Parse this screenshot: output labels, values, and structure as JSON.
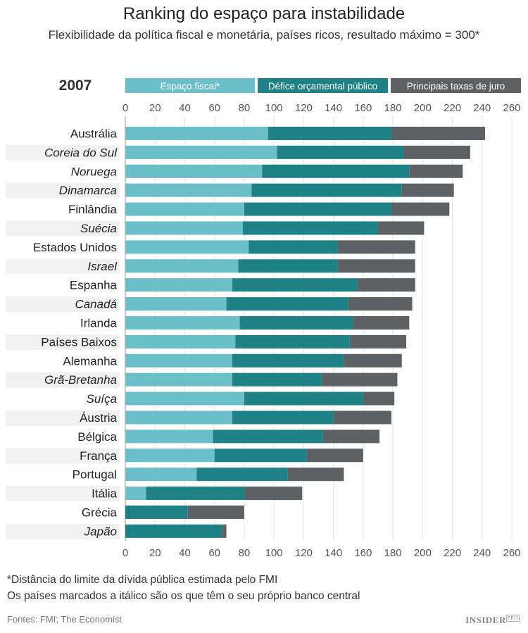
{
  "title": "Ranking do espaço para instabilidade",
  "subtitle": "Flexibilidade da política fiscal e monetária, países ricos, resultado máximo = 300*",
  "chart_data": {
    "type": "bar",
    "orientation": "horizontal",
    "stacked": true,
    "year_label": "2007",
    "xlim": [
      0,
      260
    ],
    "xticks": [
      0,
      20,
      40,
      60,
      80,
      100,
      120,
      140,
      160,
      180,
      200,
      220,
      240,
      260
    ],
    "grid": true,
    "legend_position": "top",
    "categories": [
      "Austrália",
      "Coreia do Sul",
      "Noruega",
      "Dinamarca",
      "Finlândia",
      "Suécia",
      "Estados Unidos",
      "Israel",
      "Espanha",
      "Canadá",
      "Irlanda",
      "Países Baixos",
      "Alemanha",
      "Grã-Bretanha",
      "Suíça",
      "Áustria",
      "Bélgica",
      "França",
      "Portugal",
      "Itália",
      "Grécia",
      "Japão"
    ],
    "italic": [
      false,
      true,
      true,
      true,
      false,
      true,
      false,
      true,
      false,
      true,
      false,
      false,
      false,
      true,
      true,
      false,
      false,
      false,
      false,
      false,
      false,
      true
    ],
    "series": [
      {
        "name": "Espaço fiscal*",
        "color": "#6bbfc9",
        "values": [
          96,
          102,
          92,
          85,
          80,
          79,
          83,
          76,
          72,
          68,
          77,
          74,
          72,
          72,
          80,
          72,
          59,
          60,
          48,
          14,
          0,
          0
        ]
      },
      {
        "name": "Défice orçamental público",
        "color": "#1e8185",
        "values": [
          83,
          85,
          99,
          101,
          99,
          91,
          60,
          67,
          84,
          82,
          76,
          77,
          75,
          60,
          80,
          68,
          74,
          62,
          61,
          66,
          42,
          65
        ]
      },
      {
        "name": "Principais taxas de juro",
        "color": "#5d6163",
        "values": [
          63,
          45,
          36,
          35,
          39,
          31,
          52,
          52,
          39,
          43,
          38,
          38,
          39,
          51,
          21,
          39,
          38,
          38,
          38,
          39,
          38,
          3
        ]
      }
    ]
  },
  "footnotes": {
    "line1": "*Distância do limite da dívida pública estimada pelo FMI",
    "line2": "Os países marcados a itálico são os que têm o seu próprio banco central",
    "source": "Fontes: FMI; The Economist"
  },
  "logo": {
    "text": "INSIDER",
    "suffix": "PRO"
  }
}
